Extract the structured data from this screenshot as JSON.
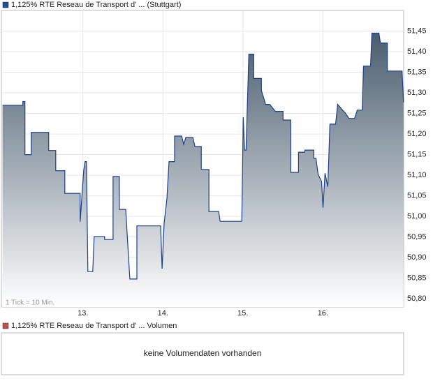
{
  "chart_data": {
    "type": "line",
    "legend_color": "#1f4e8c",
    "note": "1 Tick = 10 Min.",
    "series": [
      {
        "name": "1,125% RTE Reseau de Transport d' ... (Stuttgart)",
        "color": "#1c3f8f",
        "values": [
          51.27,
          51.27,
          51.279,
          51.279,
          51.15,
          51.15,
          51.204,
          51.204,
          51.16,
          51.16,
          51.111,
          51.111,
          51.056,
          51.056,
          50.987,
          51.111,
          51.133,
          51.133,
          50.866,
          50.866,
          50.951,
          50.951,
          50.944,
          50.944,
          51.097,
          51.097,
          51.017,
          51.017,
          50.848,
          50.848,
          50.977,
          50.977,
          50.873,
          50.983,
          51.043,
          51.133,
          51.133,
          51.195,
          51.195,
          51.175,
          51.192,
          51.192,
          51.17,
          51.17,
          51.114,
          51.114,
          51.012,
          51.012,
          50.988,
          50.988,
          51.241,
          51.161,
          51.161,
          51.394,
          51.394,
          51.335,
          51.335,
          51.306,
          51.272,
          51.272,
          51.255,
          51.255,
          51.234,
          51.234,
          51.107,
          51.107,
          51.156,
          51.156,
          51.161,
          51.161,
          51.141,
          51.141,
          51.102,
          51.085,
          51.021,
          51.105,
          51.072,
          51.224,
          51.224,
          51.272,
          51.258,
          51.251,
          51.238,
          51.238,
          51.258,
          51.258,
          51.365,
          51.365,
          51.445,
          51.445,
          51.421,
          51.421,
          51.353,
          51.353,
          51.277
        ]
      }
    ],
    "x": [
      11.994,
      12.248,
      12.248,
      12.274,
      12.274,
      12.353,
      12.353,
      12.571,
      12.571,
      12.659,
      12.659,
      12.773,
      12.773,
      12.965,
      12.965,
      13.009,
      13.026,
      13.044,
      13.061,
      13.122,
      13.14,
      13.271,
      13.271,
      13.376,
      13.376,
      13.455,
      13.455,
      13.534,
      13.586,
      13.674,
      13.674,
      13.971,
      13.989,
      14.015,
      14.05,
      14.076,
      14.146,
      14.146,
      14.234,
      14.26,
      14.286,
      14.374,
      14.4,
      14.479,
      14.479,
      14.575,
      14.575,
      14.697,
      14.715,
      14.986,
      15.004,
      15.021,
      15.039,
      15.074,
      15.135,
      15.135,
      15.231,
      15.231,
      15.284,
      15.336,
      15.406,
      15.502,
      15.502,
      15.598,
      15.598,
      15.695,
      15.695,
      15.774,
      15.774,
      15.887,
      15.887,
      15.913,
      15.94,
      15.983,
      16.001,
      16.027,
      16.062,
      16.088,
      16.159,
      16.185,
      16.246,
      16.281,
      16.325,
      16.395,
      16.43,
      16.491,
      16.508,
      16.596,
      16.613,
      16.701,
      16.718,
      16.806,
      16.806,
      16.99,
      17.008
    ],
    "xlim": [
      11.98,
      17.01
    ],
    "xticks": [
      {
        "value": 13,
        "label": "13."
      },
      {
        "value": 14,
        "label": "14."
      },
      {
        "value": 15,
        "label": "15."
      },
      {
        "value": 16,
        "label": "16."
      }
    ],
    "ylim": [
      50.78,
      51.5
    ],
    "yticks": [
      {
        "value": 50.8,
        "label": "50,80"
      },
      {
        "value": 50.85,
        "label": "50,85"
      },
      {
        "value": 50.9,
        "label": "50,90"
      },
      {
        "value": 50.95,
        "label": "50,95"
      },
      {
        "value": 51.0,
        "label": "51,00"
      },
      {
        "value": 51.05,
        "label": "51,05"
      },
      {
        "value": 51.1,
        "label": "51,10"
      },
      {
        "value": 51.15,
        "label": "51,15"
      },
      {
        "value": 51.2,
        "label": "51,20"
      },
      {
        "value": 51.25,
        "label": "51,25"
      },
      {
        "value": 51.3,
        "label": "51,30"
      },
      {
        "value": 51.35,
        "label": "51,35"
      },
      {
        "value": 51.4,
        "label": "51,40"
      },
      {
        "value": 51.45,
        "label": "51,45"
      }
    ],
    "grid": true
  },
  "volume_panel": {
    "legend": "1,125% RTE Reseau de Transport d' ... Volumen",
    "legend_color": "#c0504d",
    "message": "keine Volumendaten vorhanden"
  }
}
